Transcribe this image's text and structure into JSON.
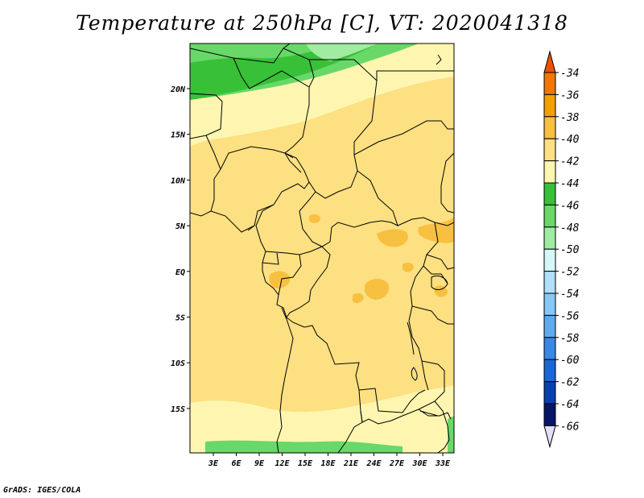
{
  "title": "Temperature at 250hPa [C], VT: 2020041318",
  "credit": "GrADS: IGES/COLA",
  "lat_ticks": [
    "20N",
    "15N",
    "10N",
    "5N",
    "EQ",
    "5S",
    "10S",
    "15S"
  ],
  "lon_ticks": [
    "3E",
    "6E",
    "9E",
    "12E",
    "15E",
    "18E",
    "21E",
    "24E",
    "27E",
    "30E",
    "33E"
  ],
  "colorbar": {
    "labels": [
      "-34",
      "-36",
      "-38",
      "-40",
      "-42",
      "-44",
      "-46",
      "-48",
      "-50",
      "-52",
      "-54",
      "-56",
      "-58",
      "-60",
      "-62",
      "-64",
      "-66"
    ],
    "colors": [
      "#f05000",
      "#f07800",
      "#f4a000",
      "#f8c040",
      "#fce082",
      "#fef6b0",
      "#38c038",
      "#68d868",
      "#a0eca0",
      "#d4f8f8",
      "#b0e0fa",
      "#88c8f6",
      "#60aaf0",
      "#3888e8",
      "#1868d8",
      "#0840b0",
      "#081468",
      "#e0e0f8"
    ]
  },
  "map_colors": {
    "band_-36": "#f8c040",
    "band_-38": "#fce082",
    "band_-40": "#fef6b0",
    "band_-42": "#38c038",
    "band_-44": "#68d868",
    "border": "#000000"
  }
}
